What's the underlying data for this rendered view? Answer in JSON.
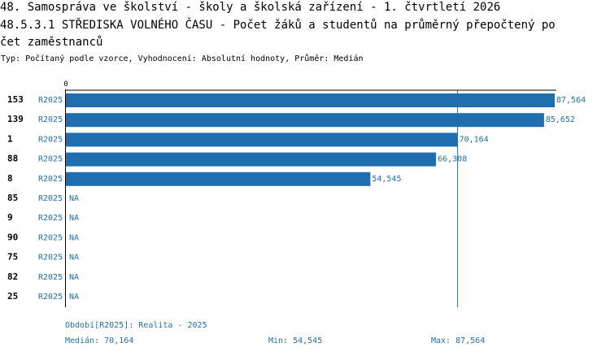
{
  "header": {
    "title_line1": "48. Samospráva ve školství - školy a školská zařízení - 1. čtvrtletí 2026",
    "title_line2": "48.5.3.1 STŘEDISKA VOLNÉHO ČASU - Počet žáků a studentů na průměrný přepočtený po",
    "title_line3": "čet zaměstnanců",
    "subtitle": "Typ: Počítaný podle vzorce, Vyhodnocení: Absolutní hodnoty, Průměr: Medián"
  },
  "chart_data": {
    "type": "bar",
    "orientation": "horizontal",
    "categories": [
      "153",
      "139",
      "1",
      "88",
      "8",
      "85",
      "9",
      "90",
      "75",
      "82",
      "25"
    ],
    "period_labels": [
      "R2025",
      "R2025",
      "R2025",
      "R2025",
      "R2025",
      "R2025",
      "R2025",
      "R2025",
      "R2025",
      "R2025",
      "R2025"
    ],
    "values": [
      87.564,
      85.652,
      70.164,
      66.308,
      54.545,
      null,
      null,
      null,
      null,
      null,
      null
    ],
    "value_labels": [
      "87,564",
      "85,652",
      "70,164",
      "66,308",
      "54,545",
      "NA",
      "NA",
      "NA",
      "NA",
      "NA",
      "NA"
    ],
    "xlim": [
      0,
      87.564
    ],
    "axis_zero_label": "0",
    "reference_line": {
      "value": 70.164,
      "label": "Medián"
    },
    "colors": {
      "bar": "#1f6fb0",
      "text": "#1f6fb0",
      "axis": "#000000"
    }
  },
  "footer": {
    "period": "Období[R2025]: Realita - 2025",
    "median": "Medián: 70,164",
    "min": "Min: 54,545",
    "max": "Max: 87,564"
  }
}
